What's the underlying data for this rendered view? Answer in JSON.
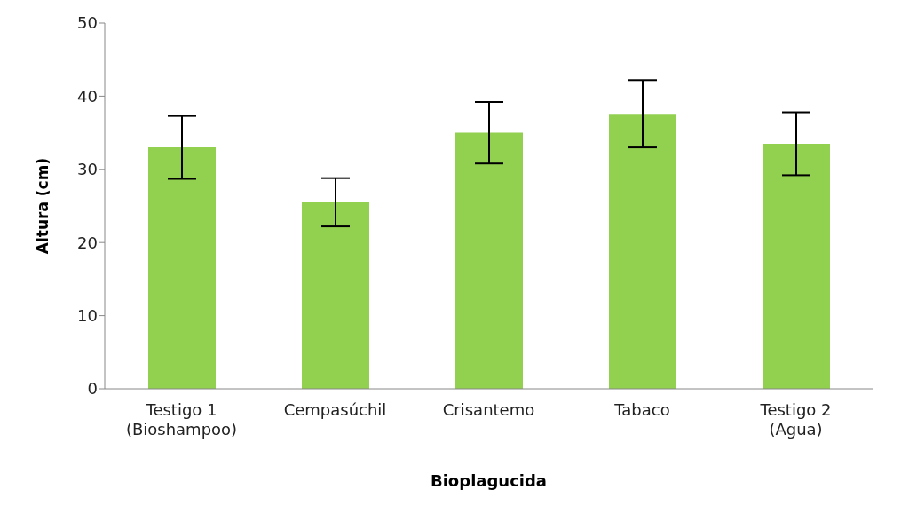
{
  "chart_data": {
    "type": "bar",
    "xlabel": "Bioplagucida",
    "ylabel": "Altura (cm)",
    "categories": [
      "Testigo 1\n(Bioshampoo)",
      "Cempasúchil",
      "Crisantemo",
      "Tabaco",
      "Testigo 2\n(Agua)"
    ],
    "values": [
      33.0,
      25.5,
      35.0,
      37.6,
      33.5
    ],
    "errors": [
      4.3,
      3.3,
      4.2,
      4.6,
      4.3
    ],
    "color": "#92d050",
    "ylim": [
      0,
      50
    ],
    "yticks": [
      0,
      10,
      20,
      30,
      40,
      50
    ],
    "grid": false,
    "legend": false
  }
}
